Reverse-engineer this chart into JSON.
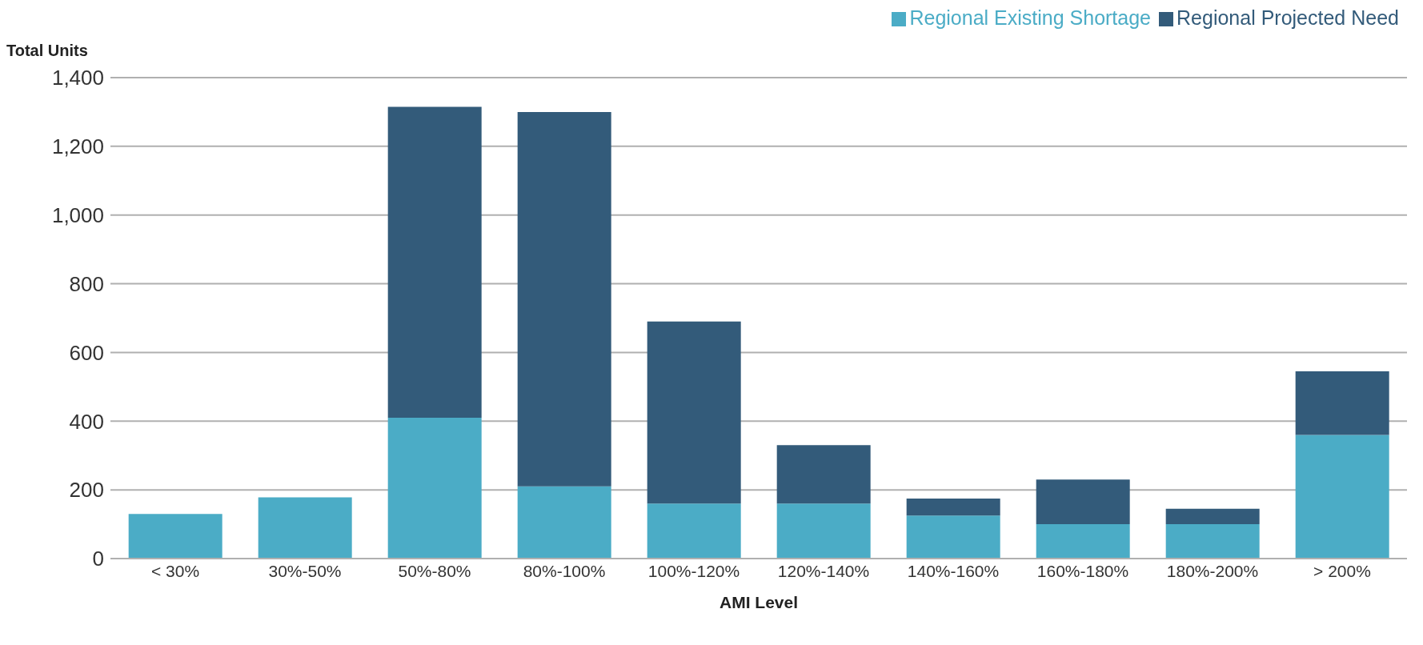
{
  "chart_data": {
    "type": "bar",
    "stacked": true,
    "ylabel": "Total Units",
    "xlabel": "AMI Level",
    "categories": [
      "< 30%",
      "30%-50%",
      "50%-80%",
      "80%-100%",
      "100%-120%",
      "120%-140%",
      "140%-160%",
      "160%-180%",
      "180%-200%",
      "> 200%"
    ],
    "series": [
      {
        "name": "Regional Existing Shortage",
        "color": "#4bacc6",
        "values": [
          130,
          178,
          410,
          210,
          160,
          160,
          125,
          100,
          100,
          360
        ]
      },
      {
        "name": "Regional Projected Need",
        "color": "#335b7a",
        "values": [
          null,
          null,
          905,
          1090,
          530,
          170,
          50,
          130,
          45,
          185
        ]
      }
    ],
    "ylim": [
      0,
      1400
    ],
    "yticks": [
      {
        "value": 0,
        "label": "0"
      },
      {
        "value": 200,
        "label": "200"
      },
      {
        "value": 400,
        "label": "400"
      },
      {
        "value": 600,
        "label": "600"
      },
      {
        "value": 800,
        "label": "800"
      },
      {
        "value": 1000,
        "label": "1,000"
      },
      {
        "value": 1200,
        "label": "1,200"
      },
      {
        "value": 1400,
        "label": "1,400"
      }
    ],
    "grid": "y",
    "legend": "top right"
  }
}
